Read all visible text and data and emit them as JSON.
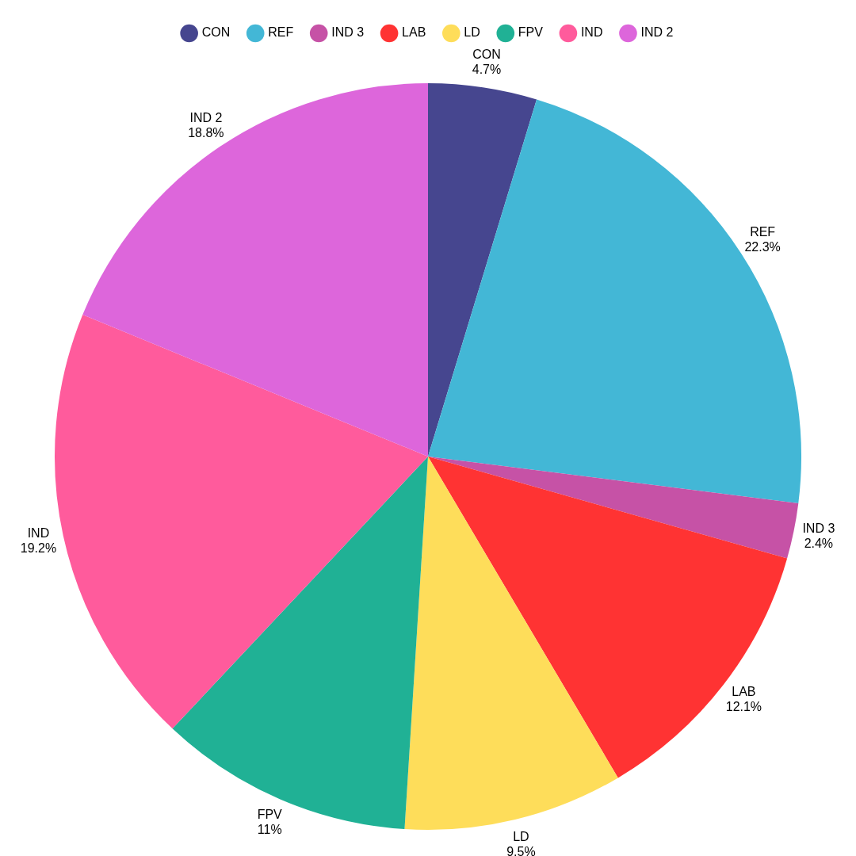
{
  "chart_data": {
    "type": "pie",
    "categories": [
      "CON",
      "REF",
      "IND 3",
      "LAB",
      "LD",
      "FPV",
      "IND",
      "IND 2"
    ],
    "values": [
      4.7,
      22.3,
      2.4,
      12.1,
      9.5,
      11,
      19.2,
      18.8
    ],
    "value_labels": [
      "4.7%",
      "22.3%",
      "2.4%",
      "12.1%",
      "9.5%",
      "11%",
      "19.2%",
      "18.8%"
    ],
    "colors": [
      "#46468f",
      "#43b7d6",
      "#c652a6",
      "#ff3333",
      "#fedd5a",
      "#20b195",
      "#ff5b9c",
      "#dd66db"
    ],
    "legend": "top"
  }
}
